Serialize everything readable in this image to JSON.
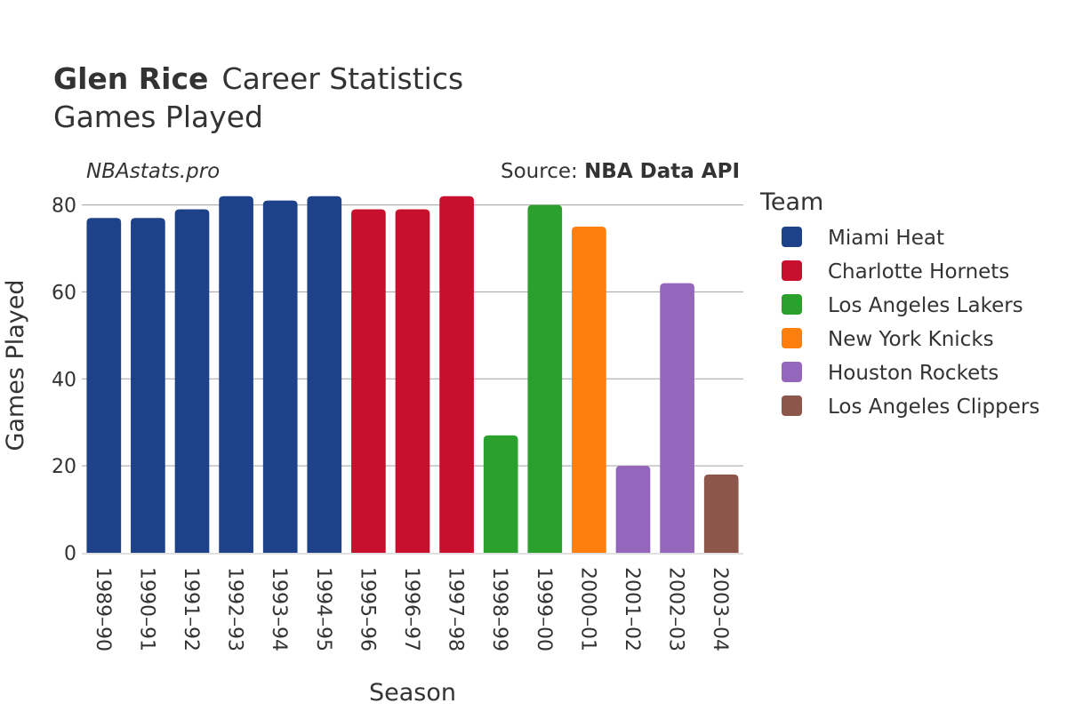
{
  "title": {
    "player": "Glen Rice",
    "rest": "Career Statistics",
    "subtitle": "Games Played"
  },
  "watermark": "NBAstats.pro",
  "source": {
    "prefix": "Source: ",
    "name": "NBA Data API"
  },
  "legend": {
    "title": "Team"
  },
  "chart_data": {
    "type": "bar",
    "xlabel": "Season",
    "ylabel": "Games Played",
    "ylim": [
      0,
      84
    ],
    "yticks": [
      0,
      20,
      40,
      60,
      80
    ],
    "grid": true,
    "legend_position": "right",
    "categories": [
      "1989–90",
      "1990–91",
      "1991–92",
      "1992–93",
      "1993–94",
      "1994–95",
      "1995–96",
      "1996–97",
      "1997–98",
      "1998–99",
      "1999–00",
      "2000–01",
      "2001–02",
      "2002–03",
      "2003–04"
    ],
    "values": [
      77,
      77,
      79,
      82,
      81,
      82,
      79,
      79,
      82,
      27,
      80,
      75,
      20,
      62,
      18
    ],
    "teams": [
      "Miami Heat",
      "Miami Heat",
      "Miami Heat",
      "Miami Heat",
      "Miami Heat",
      "Miami Heat",
      "Charlotte Hornets",
      "Charlotte Hornets",
      "Charlotte Hornets",
      "Los Angeles Lakers",
      "Los Angeles Lakers",
      "New York Knicks",
      "Houston Rockets",
      "Houston Rockets",
      "Los Angeles Clippers"
    ],
    "series": [
      {
        "name": "Miami Heat",
        "color": "#1d428a"
      },
      {
        "name": "Charlotte Hornets",
        "color": "#c8102e"
      },
      {
        "name": "Los Angeles Lakers",
        "color": "#2ca02c"
      },
      {
        "name": "New York Knicks",
        "color": "#ff7f0e"
      },
      {
        "name": "Houston Rockets",
        "color": "#9467bd"
      },
      {
        "name": "Los Angeles Clippers",
        "color": "#8c564b"
      }
    ]
  }
}
